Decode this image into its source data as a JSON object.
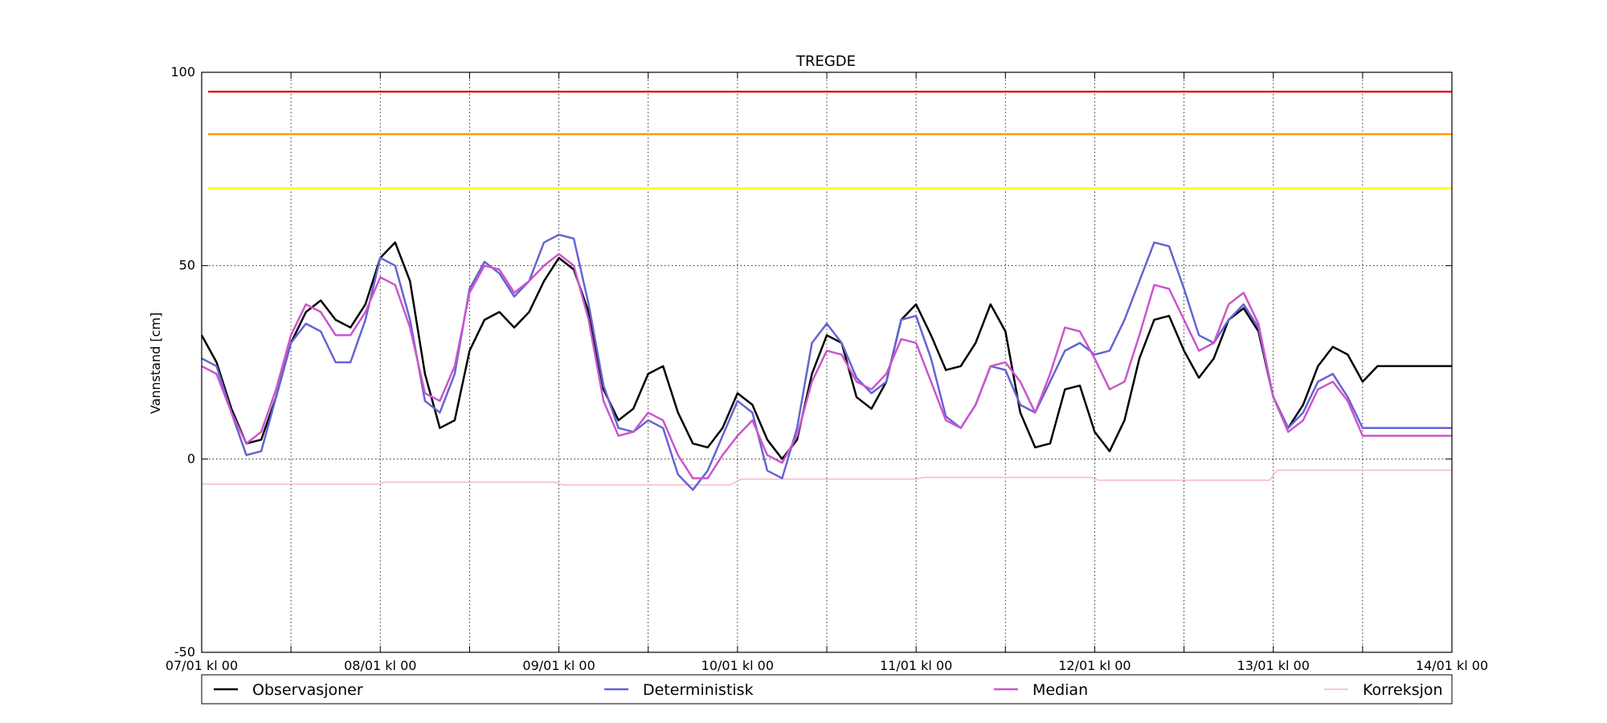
{
  "chart_data": {
    "type": "line",
    "title": "TREGDE",
    "xlabel": "",
    "ylabel": "Vannstand [cm]",
    "ylim": [
      -50,
      100
    ],
    "yticks": [
      -50,
      0,
      50,
      100
    ],
    "xlim": [
      0,
      168
    ],
    "xtick_labels": [
      "07/01 kl 00",
      "08/01 kl 00",
      "09/01 kl 00",
      "10/01 kl 00",
      "11/01 kl 00",
      "12/01 kl 00",
      "13/01 kl 00",
      "14/01 kl 00"
    ],
    "xtick_hours": [
      0,
      24,
      48,
      72,
      96,
      120,
      144,
      168
    ],
    "grid": true,
    "legend_position": "bottom",
    "thresholds": [
      {
        "value": 95,
        "color": "#e41a1c"
      },
      {
        "value": 84,
        "color": "#ff9900"
      },
      {
        "value": 70,
        "color": "#ffff00"
      }
    ],
    "series": [
      {
        "name": "Observasjoner",
        "color": "#000000",
        "x": [
          0,
          2,
          4,
          6,
          8,
          10,
          12,
          14,
          16,
          18,
          20,
          22,
          24,
          26,
          28,
          30,
          32,
          34,
          36,
          38,
          40,
          42,
          44,
          46,
          48,
          50,
          52,
          54,
          56,
          58,
          60,
          62,
          64,
          66,
          68,
          70,
          72,
          74,
          76,
          78,
          80,
          82,
          84,
          86,
          88,
          90,
          92,
          94,
          96,
          98,
          100,
          102,
          104,
          106,
          108,
          110,
          112,
          114,
          116,
          118,
          120,
          122,
          124,
          126,
          128,
          130,
          132,
          134,
          136,
          138,
          140,
          142,
          144,
          146,
          148,
          150,
          152,
          154,
          156,
          158,
          160,
          162,
          164,
          166,
          168
        ],
        "y": [
          32,
          25,
          13,
          4,
          5,
          16,
          30,
          38,
          41,
          36,
          34,
          40,
          52,
          56,
          46,
          22,
          8,
          10,
          28,
          36,
          38,
          34,
          38,
          46,
          52,
          49,
          38,
          18,
          10,
          13,
          22,
          24,
          12,
          4,
          3,
          8,
          17,
          14,
          5,
          0,
          5,
          22,
          32,
          30,
          16,
          13,
          20,
          36,
          40,
          32,
          23,
          24,
          30,
          40,
          33,
          12,
          3,
          4,
          18,
          19,
          7,
          2,
          10,
          26,
          36,
          37,
          28,
          21,
          26,
          36,
          39,
          33,
          16,
          8,
          14,
          24,
          29,
          27,
          20,
          24,
          24,
          24,
          24,
          24,
          24
        ],
        "values_note": ""
      },
      {
        "name": "Deterministisk",
        "color": "#6464d2",
        "x": [
          0,
          2,
          4,
          6,
          8,
          10,
          12,
          14,
          16,
          18,
          20,
          22,
          24,
          26,
          28,
          30,
          32,
          34,
          36,
          38,
          40,
          42,
          44,
          46,
          48,
          50,
          52,
          54,
          56,
          58,
          60,
          62,
          64,
          66,
          68,
          70,
          72,
          74,
          76,
          78,
          80,
          82,
          84,
          86,
          88,
          90,
          92,
          94,
          96,
          98,
          100,
          102,
          104,
          106,
          108,
          110,
          112,
          114,
          116,
          118,
          120,
          122,
          124,
          126,
          128,
          130,
          132,
          134,
          136,
          138,
          140,
          142,
          144,
          146,
          148,
          150,
          152,
          154,
          156,
          158,
          160,
          162,
          164,
          166,
          168
        ],
        "y": [
          26,
          24,
          12,
          1,
          2,
          16,
          30,
          35,
          33,
          25,
          25,
          36,
          52,
          50,
          36,
          15,
          12,
          22,
          44,
          51,
          48,
          42,
          46,
          56,
          58,
          57,
          40,
          19,
          8,
          7,
          10,
          8,
          -4,
          -8,
          -3,
          6,
          15,
          12,
          -3,
          -5,
          8,
          30,
          35,
          30,
          21,
          17,
          20,
          36,
          37,
          26,
          11,
          8,
          14,
          24,
          23,
          14,
          12,
          20,
          28,
          30,
          27,
          28,
          36,
          46,
          56,
          55,
          44,
          32,
          30,
          36,
          40,
          34,
          16,
          8,
          12,
          20,
          22,
          16,
          8,
          8,
          8,
          8,
          8,
          8,
          8
        ]
      },
      {
        "name": "Median",
        "color": "#cc55cc",
        "x": [
          0,
          2,
          4,
          6,
          8,
          10,
          12,
          14,
          16,
          18,
          20,
          22,
          24,
          26,
          28,
          30,
          32,
          34,
          36,
          38,
          40,
          42,
          44,
          46,
          48,
          50,
          52,
          54,
          56,
          58,
          60,
          62,
          64,
          66,
          68,
          70,
          72,
          74,
          76,
          78,
          80,
          82,
          84,
          86,
          88,
          90,
          92,
          94,
          96,
          98,
          100,
          102,
          104,
          106,
          108,
          110,
          112,
          114,
          116,
          118,
          120,
          122,
          124,
          126,
          128,
          130,
          132,
          134,
          136,
          138,
          140,
          142,
          144,
          146,
          148,
          150,
          152,
          154,
          156,
          158,
          160,
          162,
          164,
          166,
          168
        ],
        "y": [
          24,
          22,
          12,
          4,
          7,
          18,
          32,
          40,
          38,
          32,
          32,
          38,
          47,
          45,
          34,
          17,
          15,
          24,
          43,
          50,
          49,
          43,
          46,
          50,
          53,
          50,
          36,
          15,
          6,
          7,
          12,
          10,
          1,
          -5,
          -5,
          1,
          6,
          10,
          1,
          -1,
          6,
          20,
          28,
          27,
          20,
          18,
          22,
          31,
          30,
          20,
          10,
          8,
          14,
          24,
          25,
          20,
          12,
          22,
          34,
          33,
          26,
          18,
          20,
          32,
          45,
          44,
          36,
          28,
          30,
          40,
          43,
          35,
          16,
          7,
          10,
          18,
          20,
          15,
          6,
          6,
          6,
          6,
          6,
          6,
          6
        ]
      },
      {
        "name": "Korreksjon",
        "color": "#f4b8c8",
        "x": [
          0,
          24,
          24.5,
          47.5,
          48.5,
          71,
          72.5,
          96,
          97,
          119.5,
          120.5,
          143.5,
          144.5,
          168
        ],
        "y": [
          -6.5,
          -6.5,
          -6,
          -6,
          -6.7,
          -6.7,
          -5.2,
          -5.2,
          -4.8,
          -4.8,
          -5.5,
          -5.5,
          -2.9,
          -2.9
        ]
      }
    ]
  }
}
